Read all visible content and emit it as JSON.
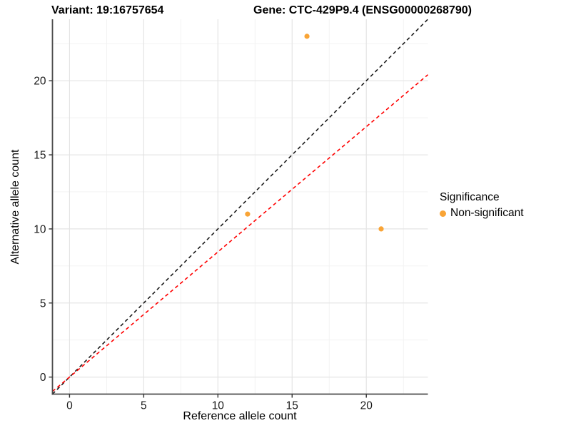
{
  "titles": {
    "variant": "Variant: 19:16757654",
    "gene": "Gene: CTC-429P9.4 (ENSG00000268790)"
  },
  "axes": {
    "x_label": "Reference allele count",
    "y_label": "Alternative allele count"
  },
  "legend": {
    "title": "Significance",
    "item_label": "Non-significant"
  },
  "colors": {
    "point": "#F9A436",
    "identity_line": "#1a1a1a",
    "ratio_line": "#FF0000",
    "grid_major": "#E4E4E4",
    "grid_minor": "#F1F1F1",
    "axis_line": "#4a4a4a",
    "tick_text": "#1a1a1a"
  },
  "chart_data": {
    "type": "scatter",
    "title": "Variant: 19:16757654  Gene: CTC-429P9.4 (ENSG00000268790)",
    "xlabel": "Reference allele count",
    "ylabel": "Alternative allele count",
    "xlim": [
      -1.15,
      24.15
    ],
    "ylim": [
      -1.15,
      24.15
    ],
    "x_ticks": [
      0,
      5,
      10,
      15,
      20
    ],
    "y_ticks": [
      0,
      5,
      10,
      15,
      20
    ],
    "minor_breaks": [
      2.5,
      7.5,
      12.5,
      17.5,
      22.5
    ],
    "grid": true,
    "legend_position": "right",
    "series": [
      {
        "name": "Non-significant",
        "color": "#F9A436",
        "points": [
          {
            "x": 16,
            "y": 23
          },
          {
            "x": 12,
            "y": 11
          },
          {
            "x": 21,
            "y": 10
          }
        ]
      }
    ],
    "lines": [
      {
        "name": "identity",
        "slope": 1.0,
        "intercept": 0,
        "style": "dashed",
        "color": "#1a1a1a"
      },
      {
        "name": "expected-ratio",
        "slope": 0.845,
        "intercept": 0,
        "style": "dashed",
        "color": "#FF0000"
      }
    ],
    "legend": {
      "title": "Significance",
      "entries": [
        {
          "label": "Non-significant",
          "color": "#F9A436"
        }
      ]
    }
  }
}
